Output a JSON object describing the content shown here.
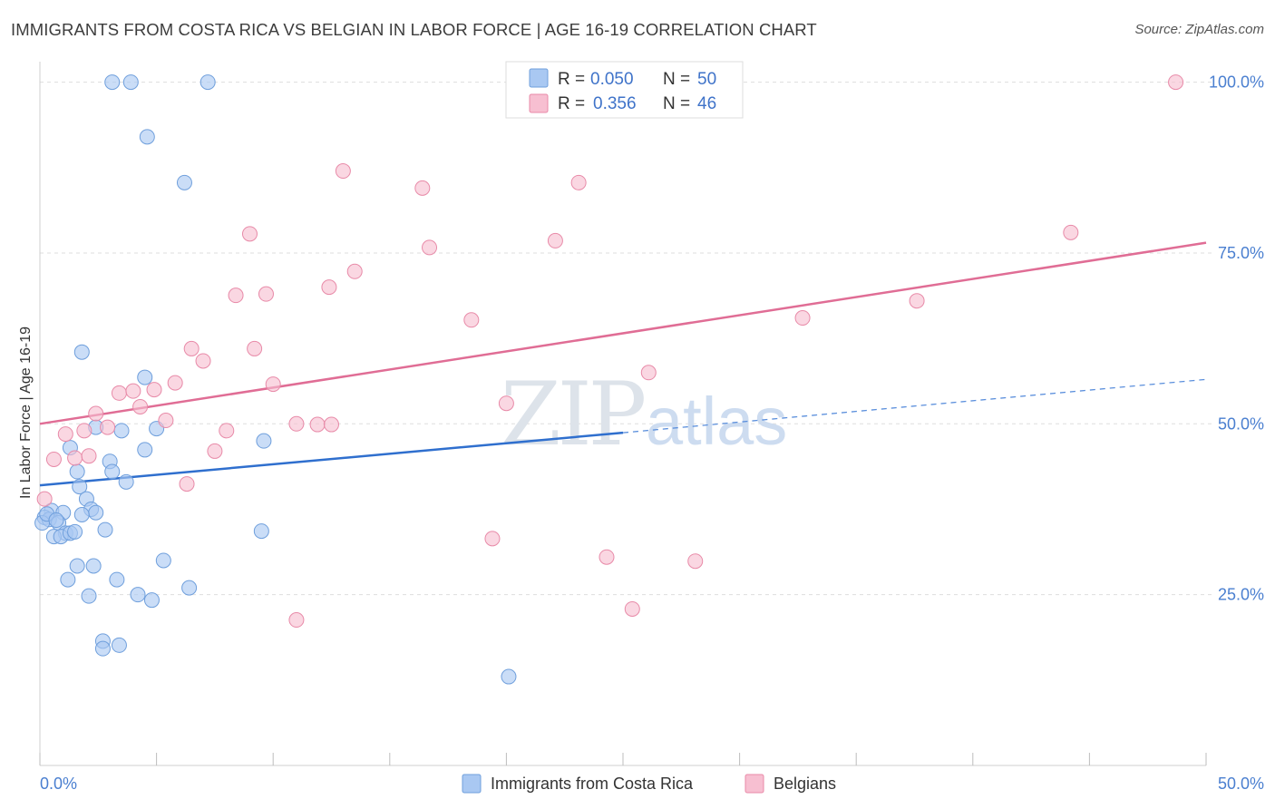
{
  "title": "IMMIGRANTS FROM COSTA RICA VS BELGIAN IN LABOR FORCE | AGE 16-19 CORRELATION CHART",
  "source": "Source: ZipAtlas.com",
  "watermark": {
    "zip": "ZIP",
    "atlas": "atlas"
  },
  "legend": {
    "r_label": "R =",
    "n_label": "N =",
    "rows": [
      {
        "r": "0.050",
        "n": "50"
      },
      {
        "r": "0.356",
        "n": "46"
      }
    ]
  },
  "chart_data": {
    "type": "scatter",
    "title": "IMMIGRANTS FROM COSTA RICA VS BELGIAN IN LABOR FORCE | AGE 16-19 CORRELATION CHART",
    "xlabel": "",
    "ylabel": "In Labor Force | Age 16-19",
    "xlim": [
      0,
      50
    ],
    "ylim": [
      0,
      103
    ],
    "x_tick_labels": [
      "0.0%",
      "50.0%"
    ],
    "y_ticks": [
      25,
      50,
      75,
      100
    ],
    "y_tick_labels": [
      "25.0%",
      "50.0%",
      "75.0%",
      "100.0%"
    ],
    "grid": true,
    "legend_position": "top-center",
    "series": [
      {
        "name": "Immigrants from Costa Rica",
        "color": "#a9c8f2",
        "stroke": "#6f9fdc",
        "points": [
          [
            3.1,
            100
          ],
          [
            3.9,
            100
          ],
          [
            7.2,
            100
          ],
          [
            4.6,
            92.0
          ],
          [
            6.2,
            85.3
          ],
          [
            1.8,
            60.5
          ],
          [
            4.5,
            56.8
          ],
          [
            5.0,
            49.3
          ],
          [
            3.5,
            49.0
          ],
          [
            2.4,
            49.5
          ],
          [
            4.5,
            46.2
          ],
          [
            1.3,
            46.5
          ],
          [
            3.0,
            44.5
          ],
          [
            3.1,
            43.0
          ],
          [
            1.6,
            43.0
          ],
          [
            3.7,
            41.5
          ],
          [
            1.7,
            40.8
          ],
          [
            2.0,
            39.0
          ],
          [
            0.5,
            37.3
          ],
          [
            1.0,
            37.0
          ],
          [
            2.2,
            37.5
          ],
          [
            2.4,
            37.0
          ],
          [
            1.8,
            36.7
          ],
          [
            0.2,
            36.3
          ],
          [
            0.4,
            36.0
          ],
          [
            0.1,
            35.5
          ],
          [
            0.8,
            35.5
          ],
          [
            2.8,
            34.5
          ],
          [
            1.1,
            34.0
          ],
          [
            0.6,
            33.5
          ],
          [
            0.9,
            33.5
          ],
          [
            1.3,
            34.0
          ],
          [
            9.5,
            34.3
          ],
          [
            1.6,
            29.2
          ],
          [
            2.3,
            29.2
          ],
          [
            5.3,
            30.0
          ],
          [
            1.2,
            27.2
          ],
          [
            3.3,
            27.2
          ],
          [
            6.4,
            26.0
          ],
          [
            2.1,
            24.8
          ],
          [
            4.2,
            25.0
          ],
          [
            4.8,
            24.2
          ],
          [
            2.7,
            18.2
          ],
          [
            2.7,
            17.1
          ],
          [
            3.4,
            17.6
          ],
          [
            20.1,
            13.0
          ],
          [
            9.6,
            47.5
          ],
          [
            0.3,
            36.8
          ],
          [
            1.5,
            34.2
          ],
          [
            0.7,
            35.9
          ]
        ],
        "trend": {
          "x1": 0,
          "y1": 41.0,
          "x2": 25.0,
          "y2": 48.7,
          "dash_to_x": 50,
          "dash_to_y": 56.5
        }
      },
      {
        "name": "Belgians",
        "color": "#f7bfd1",
        "stroke": "#e88aa8",
        "points": [
          [
            48.7,
            100
          ],
          [
            13.0,
            87.0
          ],
          [
            16.4,
            84.5
          ],
          [
            23.1,
            85.3
          ],
          [
            44.2,
            78.0
          ],
          [
            9.0,
            77.8
          ],
          [
            16.7,
            75.8
          ],
          [
            22.1,
            76.8
          ],
          [
            13.5,
            72.3
          ],
          [
            12.4,
            70.0
          ],
          [
            8.4,
            68.8
          ],
          [
            9.7,
            69.0
          ],
          [
            37.6,
            68.0
          ],
          [
            18.5,
            65.2
          ],
          [
            32.7,
            65.5
          ],
          [
            6.5,
            61.0
          ],
          [
            9.2,
            61.0
          ],
          [
            7.0,
            59.2
          ],
          [
            26.1,
            57.5
          ],
          [
            5.8,
            56.0
          ],
          [
            10.0,
            55.8
          ],
          [
            4.9,
            55.0
          ],
          [
            3.4,
            54.5
          ],
          [
            4.0,
            54.8
          ],
          [
            4.3,
            52.5
          ],
          [
            20.0,
            53.0
          ],
          [
            2.4,
            51.5
          ],
          [
            5.4,
            50.5
          ],
          [
            11.0,
            50.0
          ],
          [
            11.9,
            49.9
          ],
          [
            12.5,
            49.9
          ],
          [
            2.9,
            49.5
          ],
          [
            1.9,
            49.0
          ],
          [
            8.0,
            49.0
          ],
          [
            1.1,
            48.5
          ],
          [
            7.5,
            46.0
          ],
          [
            1.5,
            45.0
          ],
          [
            0.6,
            44.8
          ],
          [
            6.3,
            41.2
          ],
          [
            0.2,
            39.0
          ],
          [
            19.4,
            33.2
          ],
          [
            24.3,
            30.5
          ],
          [
            28.1,
            29.9
          ],
          [
            25.4,
            22.9
          ],
          [
            11.0,
            21.3
          ],
          [
            2.1,
            45.3
          ]
        ],
        "trend": {
          "x1": 0,
          "y1": 50.0,
          "x2": 50,
          "y2": 76.5
        }
      }
    ]
  }
}
